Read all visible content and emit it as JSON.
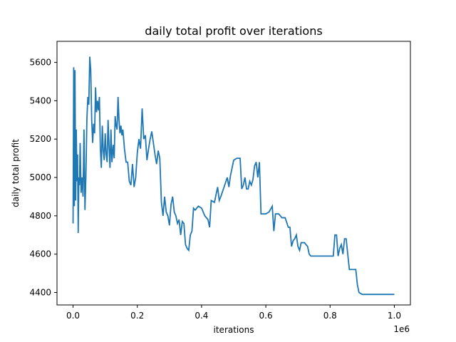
{
  "chart_data": {
    "type": "line",
    "title": "daily total profit over iterations",
    "xlabel": "iterations",
    "ylabel": "daily total profit",
    "x_offset_label": "1e6",
    "xlim": [
      -0.05,
      1.05
    ],
    "ylim": [
      4335,
      5710
    ],
    "xticks": [
      {
        "value": 0.0,
        "label": "0.0"
      },
      {
        "value": 0.2,
        "label": "0.2"
      },
      {
        "value": 0.4,
        "label": "0.4"
      },
      {
        "value": 0.6,
        "label": "0.6"
      },
      {
        "value": 0.8,
        "label": "0.8"
      },
      {
        "value": 1.0,
        "label": "1.0"
      }
    ],
    "yticks": [
      {
        "value": 4400,
        "label": "4400"
      },
      {
        "value": 4600,
        "label": "4600"
      },
      {
        "value": 4800,
        "label": "4800"
      },
      {
        "value": 5000,
        "label": "5000"
      },
      {
        "value": 5200,
        "label": "5200"
      },
      {
        "value": 5400,
        "label": "5400"
      },
      {
        "value": 5600,
        "label": "5600"
      }
    ],
    "grid": false,
    "legend": false,
    "line_color": "#1f77b4",
    "series": [
      {
        "points": [
          [
            0.0,
            4760
          ],
          [
            0.002,
            5575
          ],
          [
            0.004,
            4850
          ],
          [
            0.006,
            5560
          ],
          [
            0.008,
            4880
          ],
          [
            0.01,
            5250
          ],
          [
            0.012,
            4980
          ],
          [
            0.014,
            5120
          ],
          [
            0.016,
            4710
          ],
          [
            0.018,
            5000
          ],
          [
            0.02,
            4960
          ],
          [
            0.022,
            5180
          ],
          [
            0.025,
            4920
          ],
          [
            0.028,
            5000
          ],
          [
            0.031,
            4900
          ],
          [
            0.034,
            5250
          ],
          [
            0.037,
            4830
          ],
          [
            0.04,
            5010
          ],
          [
            0.043,
            5300
          ],
          [
            0.046,
            5420
          ],
          [
            0.049,
            5380
          ],
          [
            0.052,
            5630
          ],
          [
            0.055,
            5560
          ],
          [
            0.058,
            5300
          ],
          [
            0.061,
            5180
          ],
          [
            0.064,
            5280
          ],
          [
            0.067,
            5230
          ],
          [
            0.07,
            5470
          ],
          [
            0.073,
            5340
          ],
          [
            0.076,
            5400
          ],
          [
            0.079,
            5350
          ],
          [
            0.082,
            5420
          ],
          [
            0.085,
            5150
          ],
          [
            0.088,
            5050
          ],
          [
            0.091,
            5270
          ],
          [
            0.094,
            5140
          ],
          [
            0.097,
            5090
          ],
          [
            0.1,
            5230
          ],
          [
            0.103,
            5120
          ],
          [
            0.106,
            5080
          ],
          [
            0.109,
            5300
          ],
          [
            0.112,
            5160
          ],
          [
            0.115,
            5050
          ],
          [
            0.118,
            5250
          ],
          [
            0.121,
            5080
          ],
          [
            0.125,
            5170
          ],
          [
            0.128,
            5100
          ],
          [
            0.131,
            5320
          ],
          [
            0.134,
            5270
          ],
          [
            0.137,
            5250
          ],
          [
            0.14,
            5420
          ],
          [
            0.143,
            5300
          ],
          [
            0.146,
            5230
          ],
          [
            0.149,
            5270
          ],
          [
            0.152,
            5220
          ],
          [
            0.155,
            5250
          ],
          [
            0.16,
            5150
          ],
          [
            0.165,
            5080
          ],
          [
            0.17,
            5080
          ],
          [
            0.175,
            4980
          ],
          [
            0.18,
            4960
          ],
          [
            0.185,
            5070
          ],
          [
            0.19,
            4950
          ],
          [
            0.195,
            5000
          ],
          [
            0.2,
            5130
          ],
          [
            0.205,
            5200
          ],
          [
            0.21,
            5150
          ],
          [
            0.215,
            5360
          ],
          [
            0.22,
            5200
          ],
          [
            0.225,
            5220
          ],
          [
            0.23,
            5090
          ],
          [
            0.235,
            5150
          ],
          [
            0.24,
            5200
          ],
          [
            0.245,
            5240
          ],
          [
            0.25,
            5180
          ],
          [
            0.255,
            5120
          ],
          [
            0.26,
            5070
          ],
          [
            0.265,
            5140
          ],
          [
            0.27,
            5100
          ],
          [
            0.275,
            4870
          ],
          [
            0.28,
            4800
          ],
          [
            0.285,
            4900
          ],
          [
            0.29,
            4820
          ],
          [
            0.295,
            4800
          ],
          [
            0.3,
            4750
          ],
          [
            0.305,
            4860
          ],
          [
            0.31,
            4900
          ],
          [
            0.315,
            4820
          ],
          [
            0.32,
            4800
          ],
          [
            0.325,
            4760
          ],
          [
            0.33,
            4780
          ],
          [
            0.335,
            4700
          ],
          [
            0.34,
            4770
          ],
          [
            0.345,
            4760
          ],
          [
            0.35,
            4650
          ],
          [
            0.355,
            4630
          ],
          [
            0.36,
            4620
          ],
          [
            0.365,
            4700
          ],
          [
            0.37,
            4720
          ],
          [
            0.375,
            4840
          ],
          [
            0.38,
            4830
          ],
          [
            0.385,
            4840
          ],
          [
            0.39,
            4850
          ],
          [
            0.4,
            4840
          ],
          [
            0.41,
            4800
          ],
          [
            0.42,
            4780
          ],
          [
            0.425,
            4740
          ],
          [
            0.43,
            4880
          ],
          [
            0.44,
            4870
          ],
          [
            0.45,
            4950
          ],
          [
            0.455,
            4880
          ],
          [
            0.46,
            4900
          ],
          [
            0.47,
            4950
          ],
          [
            0.48,
            5000
          ],
          [
            0.485,
            4950
          ],
          [
            0.49,
            5010
          ],
          [
            0.5,
            5090
          ],
          [
            0.51,
            5100
          ],
          [
            0.52,
            5100
          ],
          [
            0.525,
            4940
          ],
          [
            0.53,
            4960
          ],
          [
            0.535,
            5000
          ],
          [
            0.54,
            4940
          ],
          [
            0.545,
            4940
          ],
          [
            0.55,
            4980
          ],
          [
            0.555,
            4960
          ],
          [
            0.56,
            4990
          ],
          [
            0.565,
            5060
          ],
          [
            0.57,
            5080
          ],
          [
            0.575,
            5000
          ],
          [
            0.58,
            5080
          ],
          [
            0.585,
            4810
          ],
          [
            0.59,
            4810
          ],
          [
            0.6,
            4810
          ],
          [
            0.61,
            4820
          ],
          [
            0.62,
            4850
          ],
          [
            0.625,
            4720
          ],
          [
            0.63,
            4810
          ],
          [
            0.64,
            4810
          ],
          [
            0.65,
            4790
          ],
          [
            0.66,
            4790
          ],
          [
            0.67,
            4740
          ],
          [
            0.675,
            4740
          ],
          [
            0.68,
            4640
          ],
          [
            0.685,
            4670
          ],
          [
            0.69,
            4680
          ],
          [
            0.695,
            4700
          ],
          [
            0.7,
            4640
          ],
          [
            0.705,
            4620
          ],
          [
            0.71,
            4660
          ],
          [
            0.72,
            4660
          ],
          [
            0.73,
            4640
          ],
          [
            0.735,
            4600
          ],
          [
            0.74,
            4590
          ],
          [
            0.76,
            4590
          ],
          [
            0.78,
            4590
          ],
          [
            0.8,
            4590
          ],
          [
            0.81,
            4590
          ],
          [
            0.815,
            4700
          ],
          [
            0.82,
            4700
          ],
          [
            0.825,
            4590
          ],
          [
            0.83,
            4630
          ],
          [
            0.835,
            4650
          ],
          [
            0.84,
            4600
          ],
          [
            0.845,
            4680
          ],
          [
            0.85,
            4680
          ],
          [
            0.855,
            4600
          ],
          [
            0.86,
            4520
          ],
          [
            0.87,
            4520
          ],
          [
            0.88,
            4520
          ],
          [
            0.885,
            4440
          ],
          [
            0.89,
            4400
          ],
          [
            0.9,
            4390
          ],
          [
            0.92,
            4390
          ],
          [
            0.94,
            4390
          ],
          [
            0.96,
            4390
          ],
          [
            0.98,
            4390
          ],
          [
            1.0,
            4390
          ]
        ]
      }
    ]
  }
}
